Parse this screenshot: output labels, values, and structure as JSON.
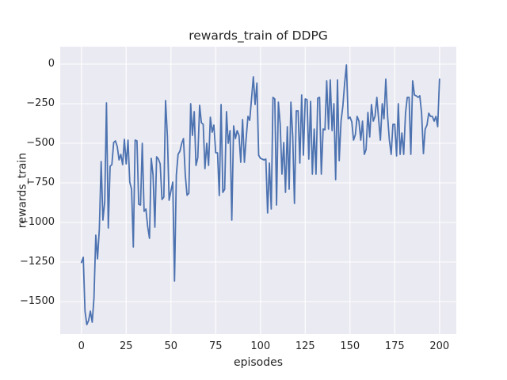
{
  "figure": {
    "title": "rewards_train of DDPG",
    "xlabel": "episodes",
    "ylabel": "rewards_train"
  },
  "chart_data": {
    "type": "line",
    "title": "rewards_train of DDPG",
    "xlabel": "episodes",
    "ylabel": "rewards_train",
    "legend": "none",
    "grid": true,
    "x_start": 0,
    "x_step": 1,
    "xticks": [
      0,
      25,
      50,
      75,
      100,
      125,
      150,
      175,
      200
    ],
    "yticks": [
      0,
      -250,
      -500,
      -750,
      -1000,
      -1250,
      -1500
    ],
    "xlim": [
      -10,
      210
    ],
    "ylim": [
      -1705,
      110
    ],
    "line_color": "#4C72B0",
    "axes_background": "#EAEAF2",
    "grid_color": "#FFFFFF",
    "text_color": "#262626",
    "values": [
      -1253,
      -1220,
      -1560,
      -1645,
      -1620,
      -1560,
      -1630,
      -1480,
      -1080,
      -1230,
      -1040,
      -615,
      -985,
      -870,
      -245,
      -1035,
      -645,
      -635,
      -495,
      -485,
      -520,
      -605,
      -570,
      -635,
      -475,
      -630,
      -480,
      -745,
      -790,
      -1155,
      -480,
      -485,
      -885,
      -890,
      -500,
      -930,
      -915,
      -1025,
      -1100,
      -595,
      -700,
      -1030,
      -585,
      -600,
      -630,
      -855,
      -840,
      -230,
      -455,
      -860,
      -800,
      -745,
      -1370,
      -700,
      -570,
      -550,
      -500,
      -470,
      -700,
      -828,
      -815,
      -250,
      -450,
      -300,
      -640,
      -590,
      -260,
      -370,
      -380,
      -660,
      -500,
      -640,
      -335,
      -430,
      -385,
      -560,
      -560,
      -830,
      -255,
      -810,
      -790,
      -300,
      -500,
      -420,
      -985,
      -390,
      -470,
      -420,
      -450,
      -620,
      -350,
      -620,
      -470,
      -330,
      -355,
      -220,
      -80,
      -255,
      -120,
      -575,
      -595,
      -600,
      -605,
      -600,
      -940,
      -625,
      -915,
      -210,
      -220,
      -890,
      -240,
      -380,
      -695,
      -495,
      -810,
      -395,
      -790,
      -240,
      -455,
      -880,
      -295,
      -295,
      -625,
      -195,
      -575,
      -220,
      -225,
      -600,
      -235,
      -695,
      -410,
      -695,
      -215,
      -210,
      -695,
      -410,
      -415,
      -105,
      -410,
      -100,
      -420,
      -250,
      -730,
      -100,
      -610,
      -360,
      -265,
      -125,
      -5,
      -345,
      -335,
      -365,
      -480,
      -445,
      -330,
      -360,
      -480,
      -360,
      -570,
      -540,
      -305,
      -460,
      -255,
      -360,
      -330,
      -210,
      -350,
      -480,
      -250,
      -345,
      -95,
      -330,
      -480,
      -570,
      -380,
      -380,
      -580,
      -250,
      -570,
      -435,
      -570,
      -310,
      -210,
      -210,
      -570,
      -105,
      -195,
      -200,
      -210,
      -200,
      -310,
      -565,
      -410,
      -385,
      -310,
      -330,
      -330,
      -360,
      -330,
      -395,
      -95
    ]
  }
}
